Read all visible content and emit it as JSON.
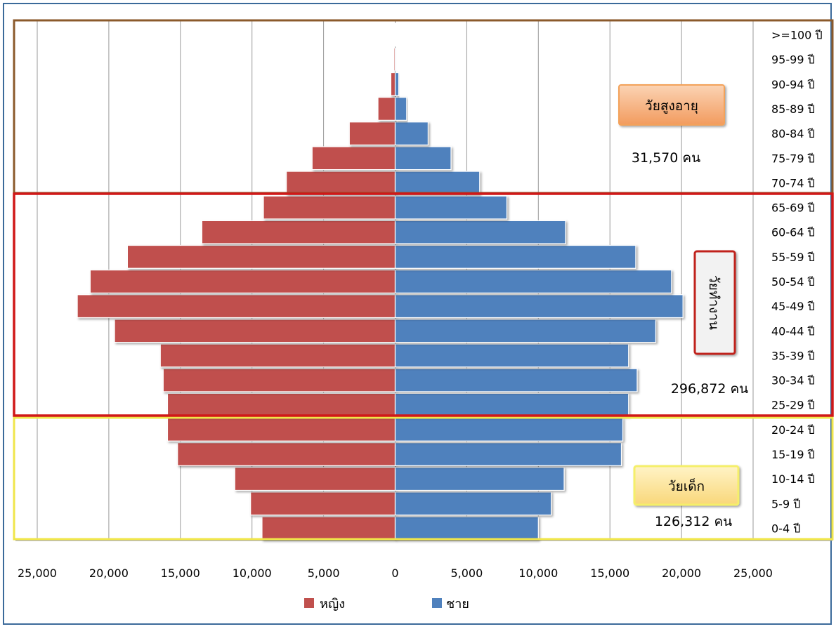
{
  "chart_data": {
    "type": "bar",
    "orientation": "horizontal-population-pyramid",
    "categories": [
      "0-4 ปี",
      "5-9 ปี",
      "10-14 ปี",
      "15-19 ปี",
      "20-24 ปี",
      "25-29 ปี",
      "30-34 ปี",
      "35-39 ปี",
      "40-44 ปี",
      "45-49 ปี",
      "50-54 ปี",
      "55-59 ปี",
      "60-64 ปี",
      "65-69 ปี",
      "70-74 ปี",
      "75-79 ปี",
      "80-84 ปี",
      "85-89 ปี",
      "90-94 ปี",
      "95-99 ปี",
      ">=100 ปี"
    ],
    "series": [
      {
        "name": "หญิง",
        "color": "#c0504d",
        "side": "left",
        "values": [
          9300,
          10100,
          11200,
          15200,
          15900,
          15900,
          16200,
          16400,
          19600,
          22200,
          21300,
          18700,
          13500,
          9200,
          7600,
          5800,
          3200,
          1200,
          300,
          80,
          20
        ]
      },
      {
        "name": "ชาย",
        "color": "#4f81bd",
        "side": "right",
        "values": [
          10000,
          10900,
          11800,
          15800,
          15900,
          16300,
          16900,
          16300,
          18200,
          20100,
          19300,
          16800,
          11900,
          7800,
          5900,
          3900,
          2300,
          800,
          250,
          60,
          20
        ]
      }
    ],
    "xlim": [
      -25000,
      25000
    ],
    "xticks": [
      -25000,
      -20000,
      -15000,
      -10000,
      -5000,
      0,
      5000,
      10000,
      15000,
      20000,
      25000
    ],
    "xtick_labels": [
      "25,000",
      "20,000",
      "15,000",
      "10,000",
      "5,000",
      "0",
      "5,000",
      "10,000",
      "15,000",
      "20,000",
      "25,000"
    ],
    "grid": "vertical",
    "legend": "bottom-center",
    "groups": [
      {
        "label": "วัยสูงอายุ",
        "total": "31,570 คน",
        "color": "#8b5a2b",
        "box_fill": "#f6b38a",
        "box_border": "#f3a25a"
      },
      {
        "label": "วัยทำงาน",
        "total": "296,872 คน",
        "color": "#d01818",
        "box_fill": "#f2f2f2",
        "box_border": "#c0201c"
      },
      {
        "label": "วัยเด็ก",
        "total": "126,312 คน",
        "color": "#f0e64a",
        "box_fill": "#fbe6a2",
        "box_border": "#f5ef6a"
      }
    ]
  }
}
